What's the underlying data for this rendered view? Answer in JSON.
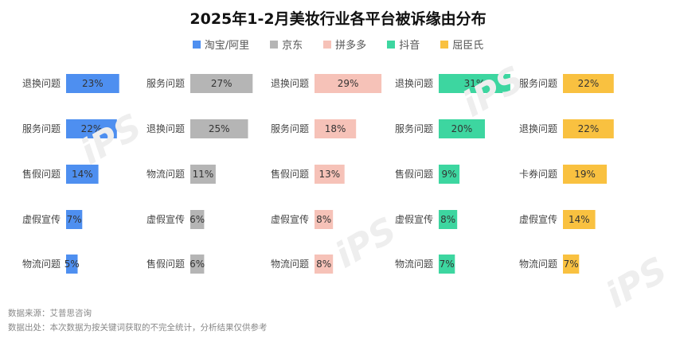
{
  "title": "2025年1-2月美妆行业各平台被诉缘由分布",
  "colors": {
    "淘宝/阿里": "#4E8FF0",
    "京东": "#B5B5B5",
    "拼多多": "#F6C2B8",
    "抖音": "#3DD6A0",
    "屈臣氏": "#F9C140"
  },
  "chart_data": {
    "type": "bar",
    "orientation": "horizontal",
    "title": "2025年1-2月美妆行业各平台被诉缘由分布",
    "legend_position": "top",
    "value_unit": "%",
    "xlim": [
      0,
      31
    ],
    "series": [
      {
        "name": "淘宝/阿里",
        "categories": [
          "退换问题",
          "服务问题",
          "售假问题",
          "虚假宣传",
          "物流问题"
        ],
        "values": [
          23,
          22,
          14,
          7,
          5
        ],
        "labels": [
          "23%",
          "22%",
          "14%",
          "7%",
          "5%"
        ]
      },
      {
        "name": "京东",
        "categories": [
          "服务问题",
          "退换问题",
          "物流问题",
          "虚假宣传",
          "售假问题"
        ],
        "values": [
          27,
          25,
          11,
          6,
          6
        ],
        "labels": [
          "27%",
          "25%",
          "11%",
          "6%",
          "6%"
        ]
      },
      {
        "name": "拼多多",
        "categories": [
          "退换问题",
          "服务问题",
          "售假问题",
          "虚假宣传",
          "物流问题"
        ],
        "values": [
          29,
          18,
          13,
          8,
          8
        ],
        "labels": [
          "29%",
          "18%",
          "13%",
          "8%",
          "8%"
        ]
      },
      {
        "name": "抖音",
        "categories": [
          "退换问题",
          "服务问题",
          "售假问题",
          "虚假宣传",
          "物流问题"
        ],
        "values": [
          31,
          20,
          9,
          8,
          7
        ],
        "labels": [
          "31%",
          "20%",
          "9%",
          "8%",
          "7%"
        ]
      },
      {
        "name": "屈臣氏",
        "categories": [
          "服务问题",
          "退换问题",
          "卡券问题",
          "虚假宣传",
          "物流问题"
        ],
        "values": [
          22,
          22,
          19,
          14,
          7
        ],
        "labels": [
          "22%",
          "22%",
          "19%",
          "14%",
          "7%"
        ]
      }
    ]
  },
  "footer": {
    "source": "数据来源：艾普思咨询",
    "note": "数据出处：本次数据为按关键词获取的不完全统计，分析结果仅供参考"
  }
}
